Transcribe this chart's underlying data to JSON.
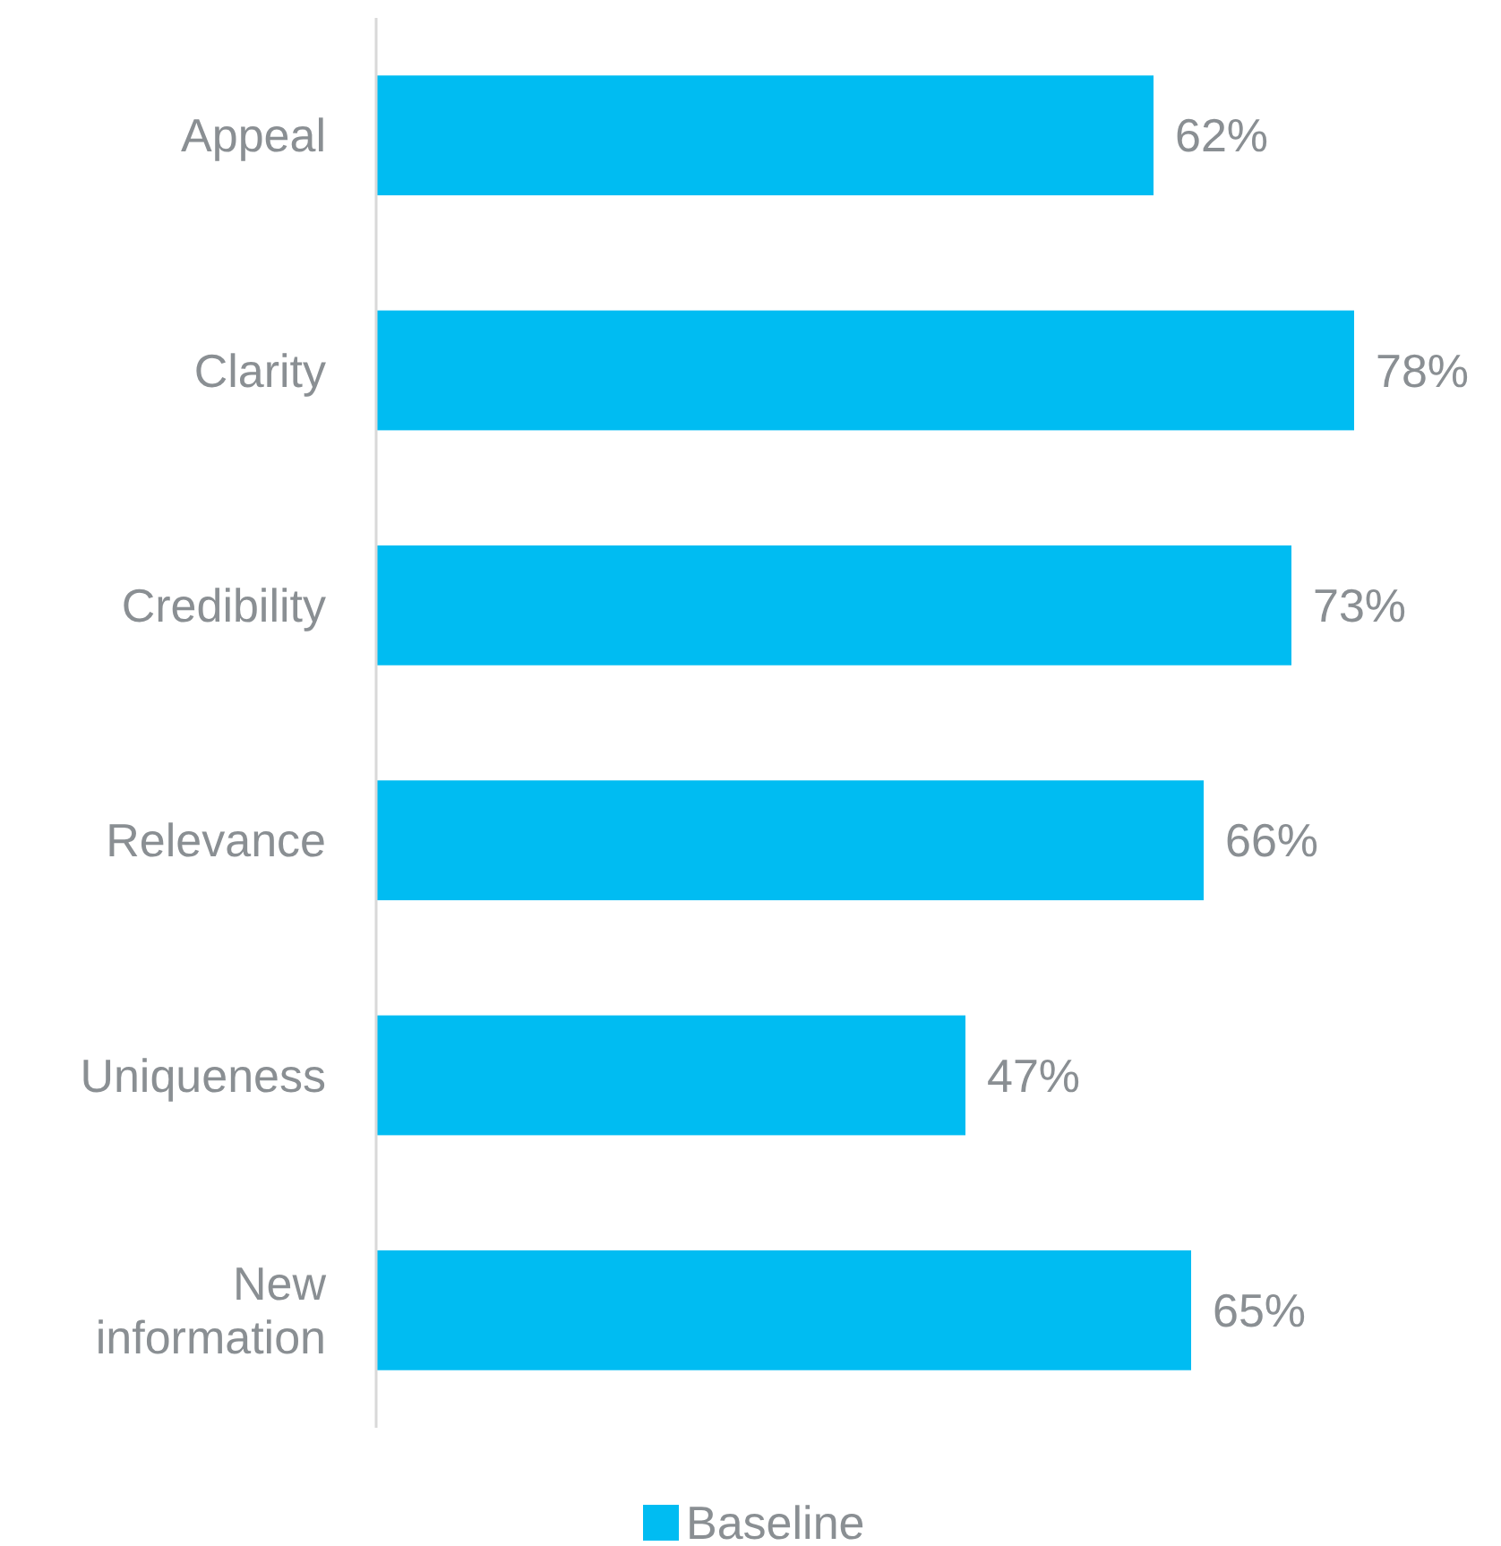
{
  "chart_data": {
    "type": "bar",
    "orientation": "horizontal",
    "categories": [
      "Appeal",
      "Clarity",
      "Credibility",
      "Relevance",
      "Uniqueness",
      "New information"
    ],
    "series": [
      {
        "name": "Baseline",
        "color": "#00bcf2",
        "values": [
          62,
          78,
          73,
          66,
          47,
          65
        ],
        "value_labels": [
          "62%",
          "78%",
          "73%",
          "66%",
          "47%",
          "65%"
        ]
      }
    ],
    "legend": "bottom",
    "grid": false
  }
}
